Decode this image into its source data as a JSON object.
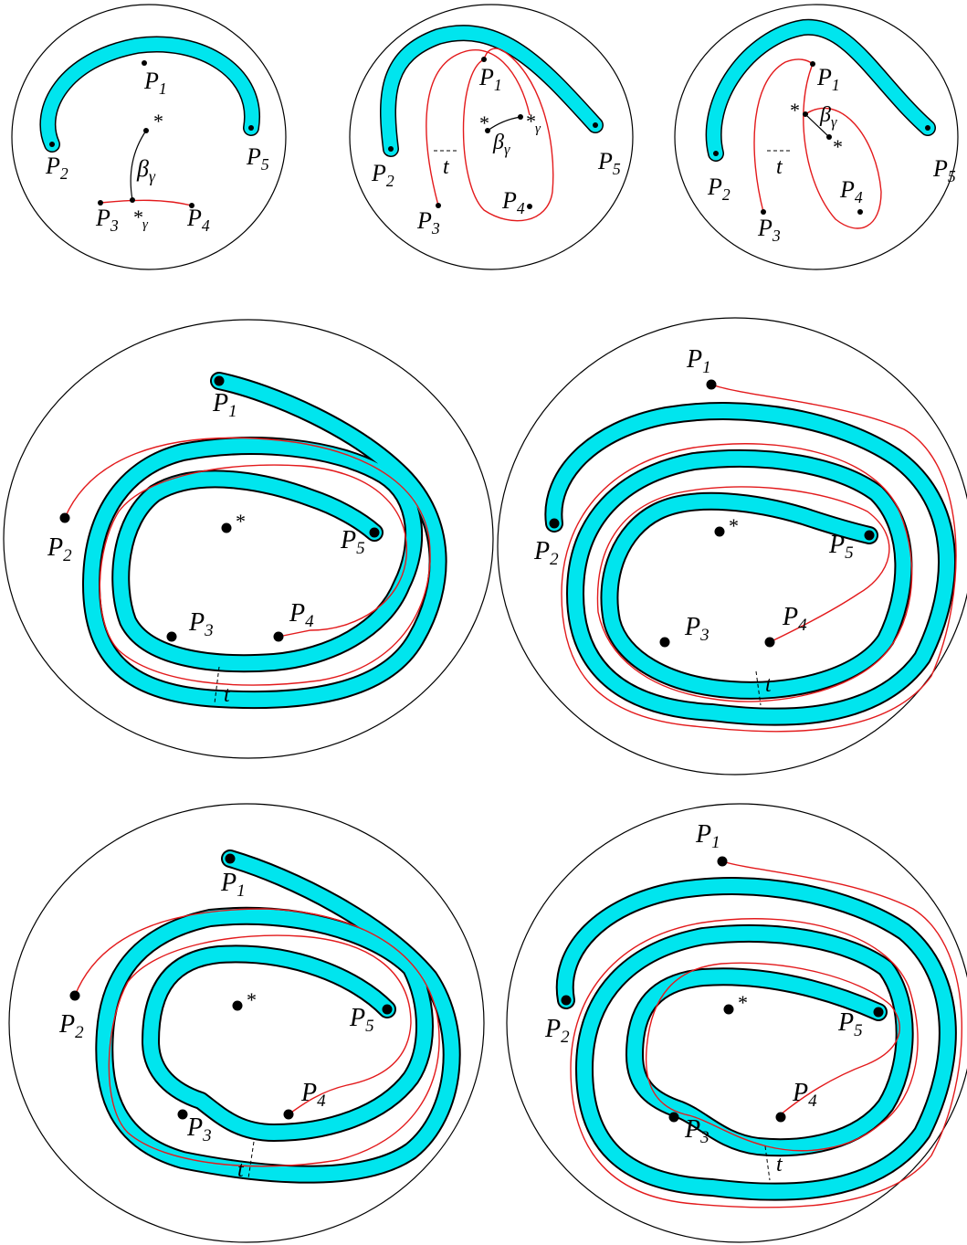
{
  "labels": {
    "P1": "P",
    "P2": "P",
    "P3": "P",
    "P4": "P",
    "P5": "P",
    "sub1": "1",
    "sub2": "2",
    "sub3": "3",
    "sub4": "4",
    "sub5": "5",
    "star": "*",
    "beta": "β",
    "gamma": "γ",
    "t": "t"
  },
  "colors": {
    "band": "#00e5ee",
    "arc": "#e31a1c",
    "outline": "#000000"
  },
  "panels": [
    {
      "id": "top-left",
      "icon": "disk-diagram"
    },
    {
      "id": "top-middle",
      "icon": "disk-diagram"
    },
    {
      "id": "top-right",
      "icon": "disk-diagram"
    },
    {
      "id": "middle-left",
      "icon": "disk-diagram"
    },
    {
      "id": "middle-right",
      "icon": "disk-diagram"
    },
    {
      "id": "bottom-left",
      "icon": "disk-diagram"
    },
    {
      "id": "bottom-right",
      "icon": "disk-diagram"
    }
  ]
}
